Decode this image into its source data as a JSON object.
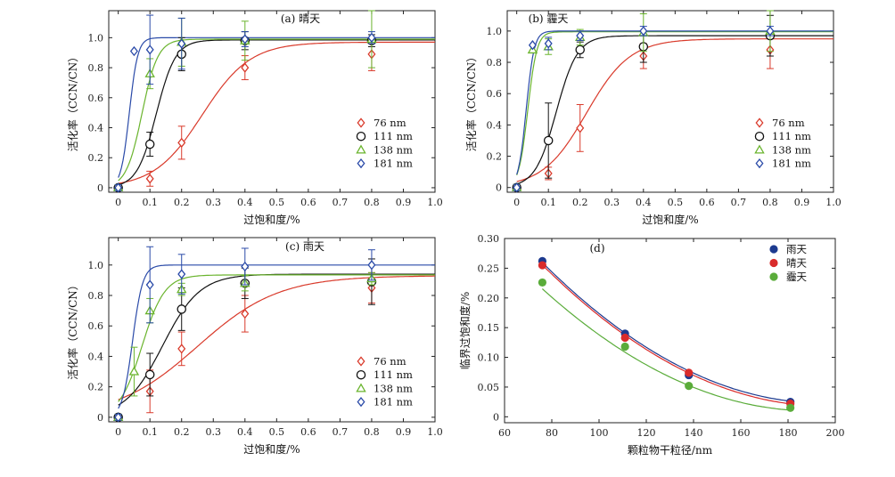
{
  "chart_data": [
    {
      "id": "a",
      "type": "scatter",
      "title": "(a) 晴天",
      "xlabel": "过饱和度/%",
      "ylabel": "活化率（CCN/CN）",
      "xlim": [
        -0.03,
        1.0
      ],
      "ylim": [
        -0.03,
        1.18
      ],
      "xticks": [
        "0",
        "0.1",
        "0.2",
        "0.3",
        "0.4",
        "0.5",
        "0.6",
        "0.7",
        "0.8",
        "0.9",
        "1.0"
      ],
      "yticks": [
        "0",
        "0.2",
        "0.4",
        "0.6",
        "0.8",
        "1.0"
      ],
      "legend_position": "lower-right",
      "series": [
        {
          "name": "76 nm",
          "marker": "diamond",
          "color": "#d93a2b",
          "x": [
            0,
            0.1,
            0.2,
            0.4,
            0.8
          ],
          "y": [
            0,
            0.06,
            0.3,
            0.8,
            0.89
          ],
          "err": [
            0.02,
            0.05,
            0.11,
            0.08,
            0.11
          ],
          "fit": {
            "L": 0.97,
            "k": 13.2,
            "x0": 0.265
          }
        },
        {
          "name": "111 nm",
          "marker": "circle",
          "color": "#111111",
          "x": [
            0,
            0.1,
            0.2,
            0.4,
            0.8
          ],
          "y": [
            0,
            0.29,
            0.89,
            0.98,
            0.98
          ],
          "err": [
            0.02,
            0.08,
            0.11,
            0.06,
            0.04
          ],
          "fit": {
            "L": 0.985,
            "k": 33,
            "x0": 0.12
          }
        },
        {
          "name": "138 nm",
          "marker": "triangle",
          "color": "#6ab42d",
          "x": [
            0,
            0.1,
            0.2,
            0.4,
            0.8
          ],
          "y": [
            0,
            0.76,
            0.97,
            0.98,
            0.99
          ],
          "err": [
            0.02,
            0.1,
            0.16,
            0.13,
            0.19
          ],
          "fit": {
            "L": 0.99,
            "k": 40,
            "x0": 0.075
          }
        },
        {
          "name": "181 nm",
          "marker": "diamond",
          "color": "#2a4aa8",
          "x": [
            0,
            0.05,
            0.1,
            0.2,
            0.4,
            0.8
          ],
          "y": [
            0,
            0.91,
            0.92,
            0.96,
            0.99,
            1.0
          ],
          "err": [
            0.02,
            0,
            0.23,
            0.17,
            0.05,
            0.04
          ],
          "fit": {
            "L": 1.0,
            "k": 75,
            "x0": 0.035
          }
        }
      ]
    },
    {
      "id": "b",
      "type": "scatter",
      "title": "(b) 霾天",
      "xlabel": "过饱和度/%",
      "ylabel": "活化率（CCN/CN）",
      "xlim": [
        -0.03,
        1.0
      ],
      "ylim": [
        -0.03,
        1.13
      ],
      "xticks": [
        "0",
        "0.1",
        "0.2",
        "0.3",
        "0.4",
        "0.5",
        "0.6",
        "0.7",
        "0.8",
        "0.9",
        "1.0"
      ],
      "yticks": [
        "0",
        "0.2",
        "0.4",
        "0.6",
        "0.8",
        "1.0"
      ],
      "legend_position": "lower-right",
      "series": [
        {
          "name": "76 nm",
          "marker": "diamond",
          "color": "#d93a2b",
          "x": [
            0,
            0.1,
            0.2,
            0.4,
            0.8
          ],
          "y": [
            0,
            0.09,
            0.38,
            0.84,
            0.88
          ],
          "err": [
            0.02,
            0.04,
            0.15,
            0.08,
            0.12
          ],
          "fit": {
            "L": 0.95,
            "k": 14.5,
            "x0": 0.22
          }
        },
        {
          "name": "111 nm",
          "marker": "circle",
          "color": "#111111",
          "x": [
            0,
            0.1,
            0.2,
            0.4,
            0.8
          ],
          "y": [
            0,
            0.3,
            0.88,
            0.9,
            0.97
          ],
          "err": [
            0.02,
            0.24,
            0.05,
            0.1,
            0.13
          ],
          "fit": {
            "L": 0.97,
            "k": 30,
            "x0": 0.125
          }
        },
        {
          "name": "138 nm",
          "marker": "triangle",
          "color": "#6ab42d",
          "x": [
            0,
            0.05,
            0.1,
            0.2,
            0.4,
            0.8
          ],
          "y": [
            0,
            0.88,
            0.9,
            0.96,
            0.99,
            1.0
          ],
          "err": [
            0.02,
            0,
            0.05,
            0.05,
            0.12,
            0.13
          ],
          "fit": {
            "L": 0.995,
            "k": 70,
            "x0": 0.035
          }
        },
        {
          "name": "181 nm",
          "marker": "diamond",
          "color": "#2a4aa8",
          "x": [
            0,
            0.05,
            0.1,
            0.2,
            0.4,
            0.8
          ],
          "y": [
            0,
            0.91,
            0.92,
            0.97,
            1.0,
            1.0
          ],
          "err": [
            0.02,
            0,
            0.04,
            0.03,
            0.03,
            0.03
          ],
          "fit": {
            "L": 1.0,
            "k": 80,
            "x0": 0.03
          }
        }
      ]
    },
    {
      "id": "c",
      "type": "scatter",
      "title": "(c) 雨天",
      "xlabel": "过饱和度/%",
      "ylabel": "活化率（CCN/CN）",
      "xlim": [
        -0.03,
        1.0
      ],
      "ylim": [
        -0.03,
        1.18
      ],
      "xticks": [
        "0",
        "0.1",
        "0.2",
        "0.3",
        "0.4",
        "0.5",
        "0.6",
        "0.7",
        "0.8",
        "0.9",
        "1.0"
      ],
      "yticks": [
        "0",
        "0.2",
        "0.4",
        "0.6",
        "0.8",
        "1.0"
      ],
      "legend_position": "lower-right",
      "series": [
        {
          "name": "76 nm",
          "marker": "diamond",
          "color": "#d93a2b",
          "x": [
            0,
            0.1,
            0.2,
            0.4,
            0.8
          ],
          "y": [
            0,
            0.17,
            0.45,
            0.68,
            0.85
          ],
          "err": [
            0.02,
            0.14,
            0.11,
            0.12,
            0.1
          ],
          "fit": {
            "L": 0.93,
            "k": 7.8,
            "x0": 0.25
          }
        },
        {
          "name": "111 nm",
          "marker": "circle",
          "color": "#111111",
          "x": [
            0,
            0.1,
            0.2,
            0.4,
            0.8
          ],
          "y": [
            0,
            0.28,
            0.71,
            0.88,
            0.89
          ],
          "err": [
            0.02,
            0.14,
            0.14,
            0.1,
            0.15
          ],
          "fit": {
            "L": 0.94,
            "k": 17,
            "x0": 0.14
          }
        },
        {
          "name": "138 nm",
          "marker": "triangle",
          "color": "#6ab42d",
          "x": [
            0,
            0.05,
            0.1,
            0.2,
            0.4,
            0.8
          ],
          "y": [
            0,
            0.3,
            0.7,
            0.84,
            0.88,
            0.91
          ],
          "err": [
            0.02,
            0.16,
            0.08,
            0.04,
            0.05,
            0.04
          ],
          "fit": {
            "L": 0.935,
            "k": 28,
            "x0": 0.075
          }
        },
        {
          "name": "181 nm",
          "marker": "diamond",
          "color": "#2a4aa8",
          "x": [
            0,
            0.1,
            0.2,
            0.4,
            0.8
          ],
          "y": [
            0,
            0.87,
            0.94,
            0.99,
            1.0
          ],
          "err": [
            0.02,
            0.25,
            0.13,
            0.12,
            0.1
          ],
          "fit": {
            "L": 1.0,
            "k": 62,
            "x0": 0.045
          }
        }
      ]
    },
    {
      "id": "d",
      "type": "scatter",
      "title": "(d)",
      "xlabel": "颗粒物干粒径/nm",
      "ylabel": "临界过饱和度/%",
      "xlim": [
        60,
        200
      ],
      "ylim": [
        -0.01,
        0.3
      ],
      "xticks": [
        "60",
        "80",
        "100",
        "120",
        "140",
        "160",
        "180",
        "200"
      ],
      "yticks": [
        "0",
        "0.05",
        "0.10",
        "0.15",
        "0.20",
        "0.25",
        "0.30"
      ],
      "legend_position": "top-right",
      "series": [
        {
          "name": "雨天",
          "marker": "dot",
          "color": "#1d3a8f",
          "x": [
            76,
            111,
            138,
            181
          ],
          "y": [
            0.262,
            0.14,
            0.07,
            0.025
          ],
          "fit": {
            "a": 1.67e-05,
            "x_min": 195,
            "c": 0.023
          }
        },
        {
          "name": "晴天",
          "marker": "dot",
          "color": "#d92b2b",
          "x": [
            76,
            111,
            138,
            181
          ],
          "y": [
            0.255,
            0.133,
            0.074,
            0.022
          ],
          "fit": {
            "a": 1.65e-05,
            "x_min": 196,
            "c": 0.018
          }
        },
        {
          "name": "霾天",
          "marker": "dot",
          "color": "#5aac3a",
          "x": [
            76,
            111,
            138,
            181
          ],
          "y": [
            0.226,
            0.118,
            0.052,
            0.015
          ],
          "fit": {
            "a": 1.58e-05,
            "x_min": 190,
            "c": 0.01
          }
        }
      ]
    }
  ]
}
